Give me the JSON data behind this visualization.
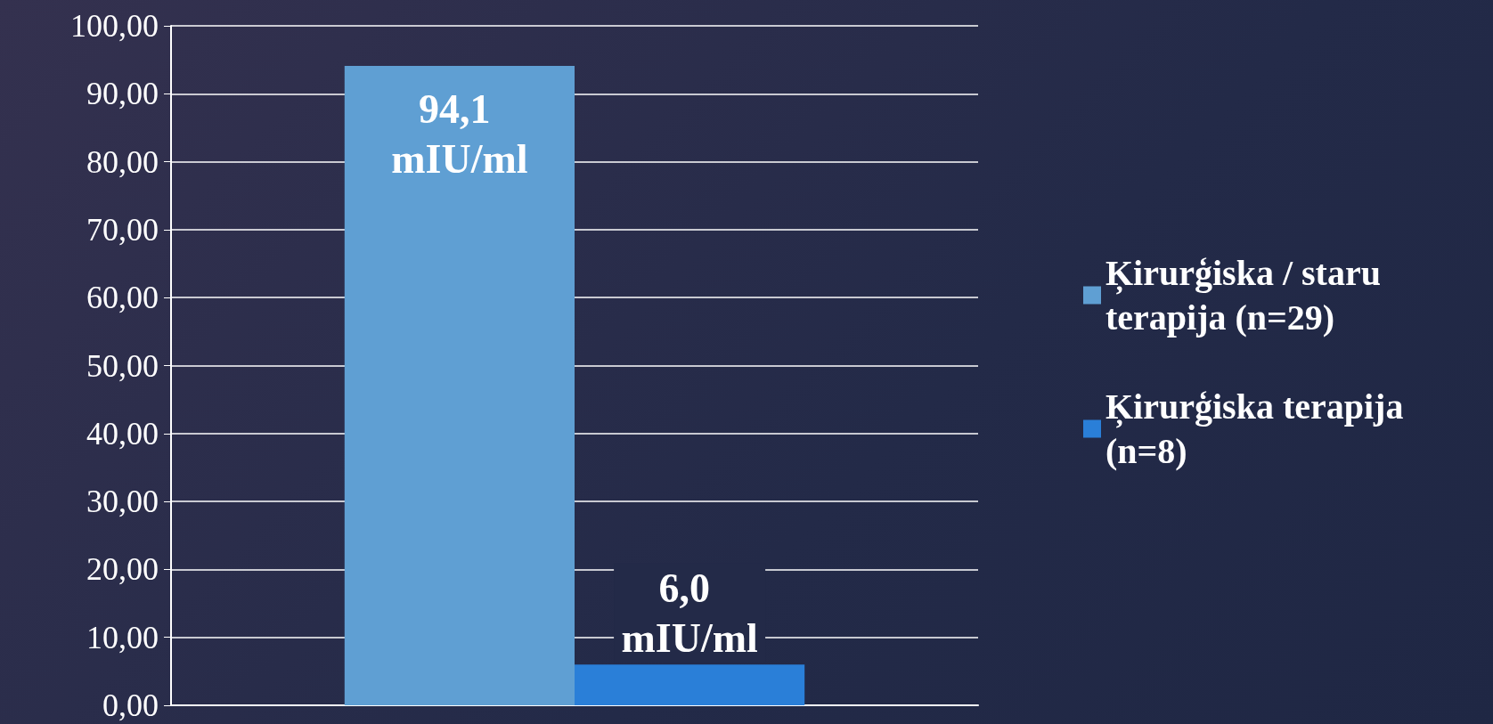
{
  "chart_data": {
    "type": "bar",
    "categories": [
      null
    ],
    "series": [
      {
        "name": "Ķirurģiska / staru terapija (n=29)",
        "color": "#5f9fd3",
        "values": [
          94.1
        ],
        "value_labels": [
          "94,1 mIU/ml"
        ]
      },
      {
        "name": "Ķirurģiska terapija (n=8)",
        "color": "#2a7fd8",
        "values": [
          6.0
        ],
        "value_labels": [
          "6,0 mIU/ml"
        ]
      }
    ],
    "ylim": [
      0,
      100
    ],
    "yticks": [
      {
        "value": 0,
        "label": "0,00"
      },
      {
        "value": 10,
        "label": "10,00"
      },
      {
        "value": 20,
        "label": "20,00"
      },
      {
        "value": 30,
        "label": "30,00"
      },
      {
        "value": 40,
        "label": "40,00"
      },
      {
        "value": 50,
        "label": "50,00"
      },
      {
        "value": 60,
        "label": "60,00"
      },
      {
        "value": 70,
        "label": "70,00"
      },
      {
        "value": 80,
        "label": "80,00"
      },
      {
        "value": 90,
        "label": "90,00"
      },
      {
        "value": 100,
        "label": "100,00"
      }
    ],
    "grid": "y",
    "legend": "right"
  }
}
